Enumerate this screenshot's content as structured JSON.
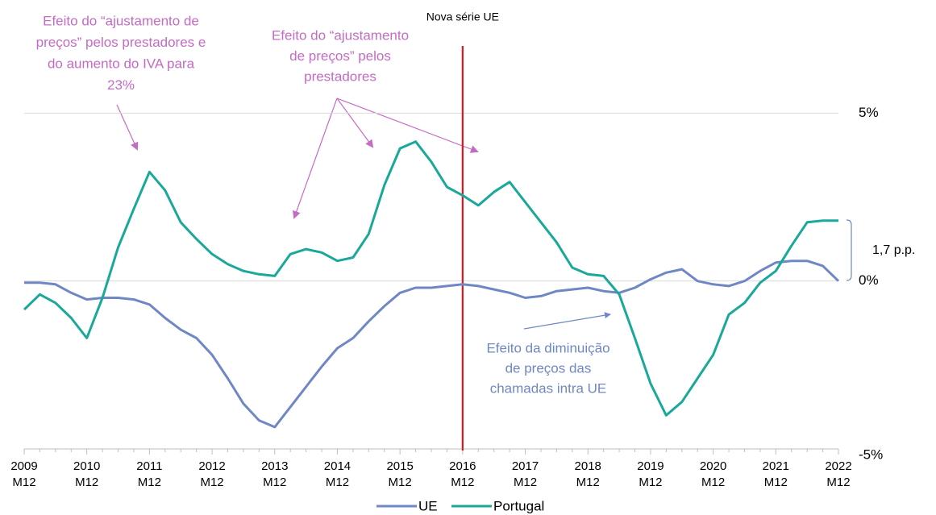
{
  "chart_data": {
    "type": "line",
    "categories": [
      "2009 M12",
      null,
      null,
      null,
      "2010 M12",
      null,
      null,
      null,
      "2011 M12",
      null,
      null,
      null,
      "2012 M12",
      null,
      null,
      null,
      "2013 M12",
      null,
      null,
      null,
      "2014 M12",
      null,
      null,
      null,
      "2015 M12",
      null,
      null,
      null,
      "2016 M12",
      null,
      null,
      null,
      "2017 M12",
      null,
      null,
      null,
      "2018 M12",
      null,
      null,
      null,
      "2019 M12",
      null,
      null,
      null,
      "2020 M12",
      null,
      null,
      null,
      "2021 M12",
      null,
      null,
      null,
      "2022 M12"
    ],
    "series": [
      {
        "name": "UE",
        "color": "#6f87c4",
        "values": [
          -0.05,
          -0.05,
          -0.1,
          -0.35,
          -0.55,
          -0.5,
          -0.5,
          -0.55,
          -0.7,
          -1.1,
          -1.45,
          -1.7,
          -2.2,
          -2.9,
          -3.65,
          -4.15,
          -4.35,
          -3.75,
          -3.15,
          -2.55,
          -2.0,
          -1.7,
          -1.2,
          -0.75,
          -0.35,
          -0.2,
          -0.2,
          -0.15,
          -0.1,
          -0.15,
          -0.25,
          -0.35,
          -0.5,
          -0.45,
          -0.3,
          -0.25,
          -0.2,
          -0.3,
          -0.35,
          -0.2,
          0.05,
          0.25,
          0.35,
          0.0,
          -0.1,
          -0.15,
          0.0,
          0.3,
          0.55,
          0.6,
          0.6,
          0.45,
          0.0
        ]
      },
      {
        "name": "Portugal",
        "color": "#1aa89a",
        "values": [
          -0.85,
          -0.4,
          -0.65,
          -1.1,
          -1.7,
          -0.5,
          1.0,
          2.15,
          3.25,
          2.7,
          1.75,
          1.25,
          0.8,
          0.5,
          0.3,
          0.2,
          0.15,
          0.8,
          0.95,
          0.85,
          0.6,
          0.7,
          1.4,
          2.85,
          3.95,
          4.15,
          3.55,
          2.8,
          2.55,
          2.25,
          2.65,
          2.95,
          2.35,
          1.75,
          1.15,
          0.4,
          0.2,
          0.15,
          -0.4,
          -1.7,
          -3.05,
          -4.0,
          -3.6,
          -2.9,
          -2.2,
          -1.0,
          -0.65,
          -0.05,
          0.3,
          1.05,
          1.75,
          1.8,
          1.8
        ]
      }
    ],
    "ylim": [
      -5,
      7
    ],
    "yticks": [
      {
        "value": 5,
        "label": "5%"
      },
      {
        "value": 0,
        "label": "0%"
      },
      {
        "value": -5,
        "label": "-5%"
      }
    ],
    "grid": true,
    "legend": "bottom",
    "reference_line": {
      "label": "Nova série UE",
      "at": "2016 M12",
      "color": "#e8141c"
    },
    "bracket_label": "1,7 p.p.",
    "annotations": [
      {
        "lines": [
          "Efeito do “ajustamento de",
          "preços” pelos prestadores e",
          "do aumento do IVA para",
          "23%"
        ],
        "color": "#c46bc4"
      },
      {
        "lines": [
          "Efeito do “ajustamento",
          "de preços” pelos",
          "prestadores"
        ],
        "color": "#c46bc4"
      },
      {
        "lines": [
          "Efeito da diminuição",
          "de preços das",
          "chamadas intra UE"
        ],
        "color": "#6f87c4"
      }
    ]
  }
}
